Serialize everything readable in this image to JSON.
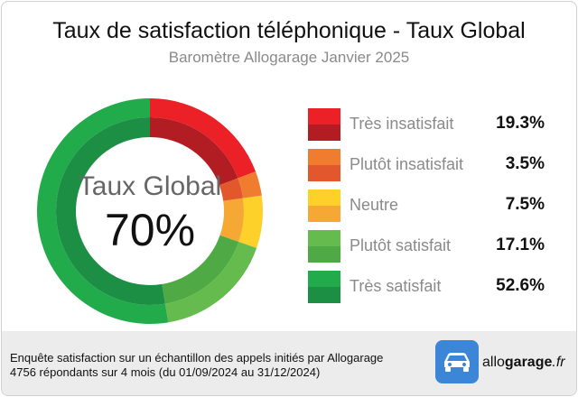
{
  "title": "Taux de satisfaction téléphonique - Taux Global",
  "subtitle": "Baromètre Allogarage Janvier 2025",
  "chart_data": {
    "type": "pie",
    "variant": "donut",
    "center_label": "Taux Global",
    "center_value": "70%",
    "labels": [
      "Très insatisfait",
      "Plutôt insatisfait",
      "Neutre",
      "Plutôt satisfait",
      "Très satisfait"
    ],
    "values": [
      19.3,
      3.5,
      7.5,
      17.1,
      52.6
    ],
    "value_labels": [
      "19.3%",
      "3.5%",
      "7.5%",
      "17.1%",
      "52.6%"
    ],
    "colors_outer": [
      "#ec2027",
      "#ef7c2f",
      "#fdd02a",
      "#66bb4e",
      "#22ab4b"
    ],
    "colors_inner": [
      "#b21d23",
      "#e2582c",
      "#f5a833",
      "#4fa945",
      "#1c8f45"
    ],
    "legend_position": "right"
  },
  "footer": {
    "note_line1": "Enquête satisfaction sur un échantillon des appels initiés par Allogarage",
    "note_line2": "4756 répondants sur 4 mois (du 01/09/2024 au 31/12/2024)",
    "logo_prefix": "allo",
    "logo_bold": "garage",
    "logo_suffix": ".fr"
  }
}
